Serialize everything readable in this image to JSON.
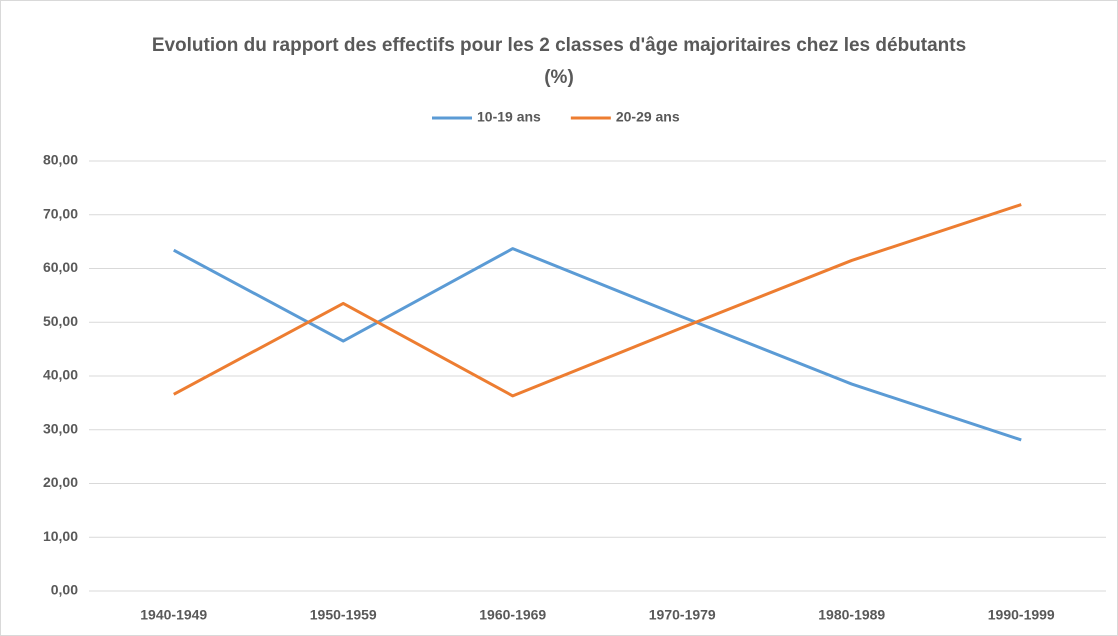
{
  "chart_data": {
    "type": "line",
    "title": "Evolution du rapport des effectifs pour les 2 classes d'âge majoritaires chez les débutants (%)",
    "categories": [
      "1940-1949",
      "1950-1959",
      "1960-1969",
      "1970-1979",
      "1980-1989",
      "1990-1999"
    ],
    "series": [
      {
        "name": "10-19 ans",
        "color": "#5b9bd5",
        "values": [
          63.4,
          46.5,
          63.7,
          51.0,
          38.5,
          28.1
        ]
      },
      {
        "name": "20-29 ans",
        "color": "#ed7d31",
        "values": [
          36.6,
          53.5,
          36.3,
          49.0,
          61.5,
          71.9
        ]
      }
    ],
    "ylim": [
      0,
      80
    ],
    "yticks": [
      {
        "value": 0,
        "label": "0,00"
      },
      {
        "value": 10,
        "label": "10,00"
      },
      {
        "value": 20,
        "label": "20,00"
      },
      {
        "value": 30,
        "label": "30,00"
      },
      {
        "value": 40,
        "label": "40,00"
      },
      {
        "value": 50,
        "label": "50,00"
      },
      {
        "value": 60,
        "label": "60,00"
      },
      {
        "value": 70,
        "label": "70,00"
      },
      {
        "value": 80,
        "label": "80,00"
      }
    ],
    "grid": true,
    "legend": "top"
  }
}
